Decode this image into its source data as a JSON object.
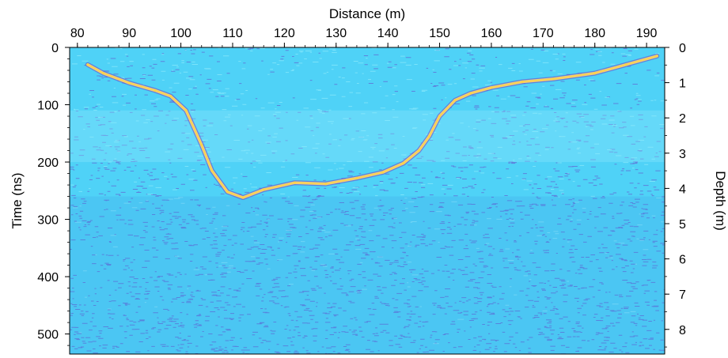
{
  "chart_data": {
    "type": "heatmap",
    "title": "",
    "xlabel": "Distance (m)",
    "ylabel": "Time (ns)",
    "y2label": "Depth (m)",
    "xlim": [
      78.5,
      193.5
    ],
    "ylim": [
      0,
      535
    ],
    "y2lim": [
      0,
      8.7
    ],
    "x_ticks": [
      80,
      90,
      100,
      110,
      120,
      130,
      140,
      150,
      160,
      170,
      180,
      190
    ],
    "y_ticks": [
      0,
      100,
      200,
      300,
      400,
      500
    ],
    "y2_ticks": [
      0,
      1,
      2,
      3,
      4,
      5,
      6,
      7,
      8
    ],
    "x_axis_position": "top",
    "y2_axis_position": "right",
    "grid": false,
    "colors": {
      "background": "#4fd2f7",
      "light": "#8fe9fb",
      "mid": "#3f8fe6",
      "dark": "#6a3fc9",
      "reflector": "#f5d27a",
      "reflector_core": "#ffd24a"
    },
    "series": [
      {
        "name": "",
        "x": [
          82,
          85,
          90,
          95,
          98,
          101,
          104,
          106,
          109,
          112,
          116,
          122,
          128,
          134,
          139,
          143,
          146,
          148,
          150,
          153,
          156,
          160,
          166,
          172,
          180,
          186,
          192
        ],
        "y": [
          30,
          45,
          62,
          75,
          85,
          110,
          170,
          215,
          252,
          262,
          248,
          236,
          238,
          228,
          218,
          202,
          180,
          155,
          120,
          92,
          80,
          70,
          60,
          55,
          45,
          30,
          15
        ]
      }
    ]
  }
}
